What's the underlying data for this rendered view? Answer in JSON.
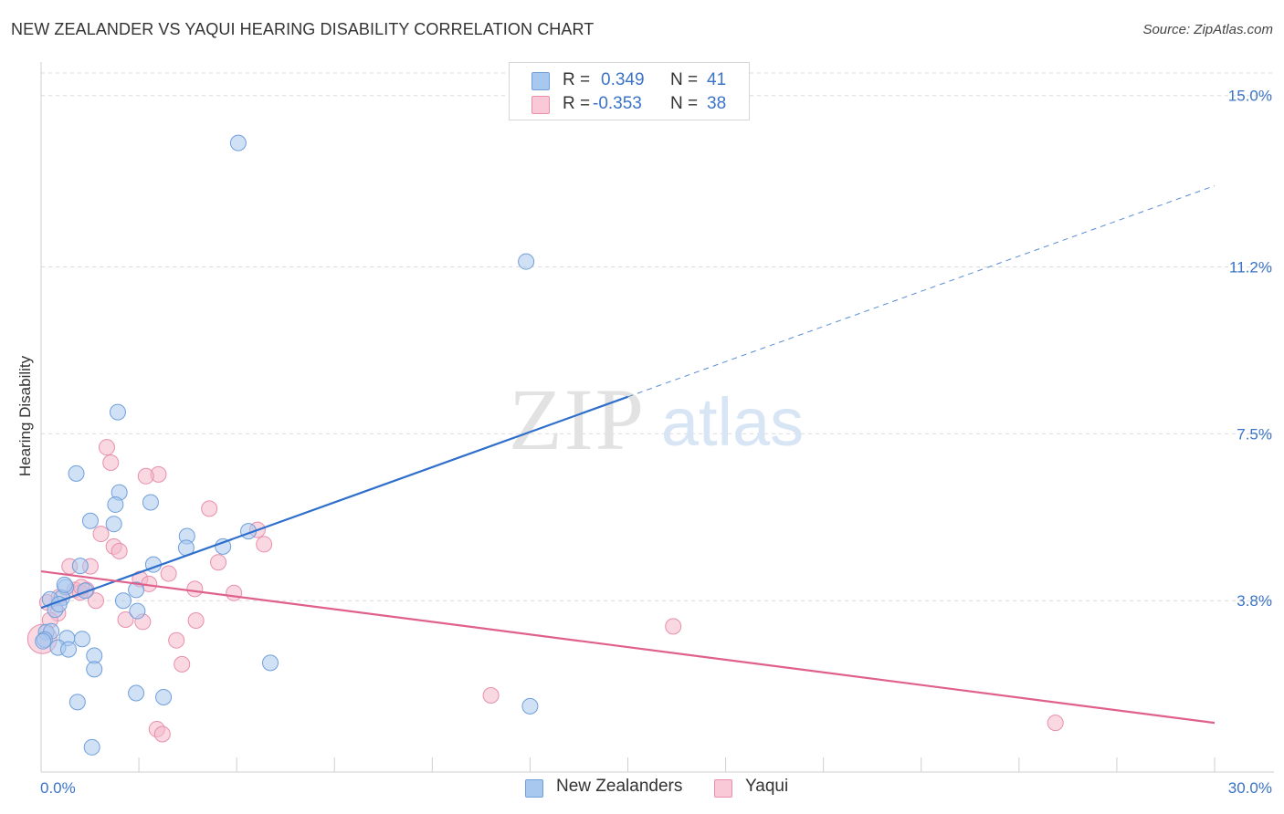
{
  "title": "NEW ZEALANDER VS YAQUI HEARING DISABILITY CORRELATION CHART",
  "source": "Source: ZipAtlas.com",
  "watermark": {
    "zip": "ZIP",
    "atlas": "atlas"
  },
  "legend_top": {
    "rows": [
      {
        "r_label": "R =",
        "r_value": "0.349",
        "n_label": "N =",
        "n_value": "41"
      },
      {
        "r_label": "R =",
        "r_value": "-0.353",
        "n_label": "N =",
        "n_value": "38"
      }
    ]
  },
  "legend_bottom": {
    "items": [
      "New Zealanders",
      "Yaqui"
    ]
  },
  "colors": {
    "blue_fill": "#a9c8ef",
    "blue_stroke": "#6f9fdb",
    "blue_line": "#2f6fcc",
    "pink_fill": "#f4b8cb",
    "pink_stroke": "#e88fac",
    "pink_line": "#e0608c",
    "tick_label": "#3a73c8",
    "grid": "#dcdcdc"
  },
  "chart_data": {
    "type": "scatter",
    "title": "NEW ZEALANDER VS YAQUI HEARING DISABILITY CORRELATION CHART",
    "xlabel": "",
    "ylabel": "Hearing Disability",
    "xlim": [
      0,
      30
    ],
    "ylim": [
      0,
      15.5
    ],
    "x_tick_labels": [
      {
        "value": 0,
        "label": "0.0%"
      },
      {
        "value": 30,
        "label": "30.0%"
      }
    ],
    "y_tick_labels": [
      {
        "value": 3.8,
        "label": "3.8%"
      },
      {
        "value": 7.5,
        "label": "7.5%"
      },
      {
        "value": 11.2,
        "label": "11.2%"
      },
      {
        "value": 15.0,
        "label": "15.0%"
      }
    ],
    "series": [
      {
        "name": "New Zealanders",
        "R": 0.349,
        "N": 41,
        "trend": {
          "solid_x": [
            0,
            15.0
          ],
          "dashed_x": [
            15.0,
            30.0
          ],
          "intercept": 3.64,
          "slope": 0.312
        },
        "points": [
          [
            5.04,
            13.95
          ],
          [
            12.4,
            11.32
          ],
          [
            1.96,
            7.98
          ],
          [
            0.9,
            6.62
          ],
          [
            2.0,
            6.2
          ],
          [
            2.8,
            5.98
          ],
          [
            1.9,
            5.93
          ],
          [
            1.26,
            5.57
          ],
          [
            1.86,
            5.5
          ],
          [
            5.3,
            5.34
          ],
          [
            3.73,
            5.23
          ],
          [
            4.65,
            5.0
          ],
          [
            3.71,
            4.97
          ],
          [
            2.87,
            4.6
          ],
          [
            1.0,
            4.57
          ],
          [
            0.63,
            4.1
          ],
          [
            1.13,
            4.02
          ],
          [
            0.53,
            3.86
          ],
          [
            0.23,
            3.83
          ],
          [
            0.36,
            3.6
          ],
          [
            0.46,
            3.72
          ],
          [
            2.1,
            3.8
          ],
          [
            2.43,
            4.04
          ],
          [
            2.46,
            3.57
          ],
          [
            0.13,
            3.1
          ],
          [
            0.26,
            3.12
          ],
          [
            1.05,
            2.95
          ],
          [
            0.66,
            2.97
          ],
          [
            0.09,
            2.94
          ],
          [
            0.43,
            2.76
          ],
          [
            0.7,
            2.72
          ],
          [
            1.36,
            2.58
          ],
          [
            1.36,
            2.28
          ],
          [
            5.86,
            2.42
          ],
          [
            2.43,
            1.75
          ],
          [
            3.13,
            1.66
          ],
          [
            0.93,
            1.55
          ],
          [
            12.5,
            1.46
          ],
          [
            1.3,
            0.55
          ],
          [
            0.05,
            2.9
          ],
          [
            0.6,
            4.15
          ]
        ]
      },
      {
        "name": "Yaqui",
        "R": -0.353,
        "N": 38,
        "trend": {
          "x": [
            0,
            30.0
          ],
          "intercept": 4.45,
          "slope": -0.112
        },
        "points": [
          [
            1.68,
            7.2
          ],
          [
            1.78,
            6.86
          ],
          [
            3.0,
            6.6
          ],
          [
            2.68,
            6.56
          ],
          [
            4.3,
            5.84
          ],
          [
            5.53,
            5.37
          ],
          [
            1.53,
            5.28
          ],
          [
            1.86,
            5.0
          ],
          [
            5.7,
            5.05
          ],
          [
            2.0,
            4.9
          ],
          [
            4.53,
            4.65
          ],
          [
            0.73,
            4.56
          ],
          [
            1.26,
            4.56
          ],
          [
            3.26,
            4.4
          ],
          [
            2.53,
            4.28
          ],
          [
            2.76,
            4.17
          ],
          [
            0.86,
            4.04
          ],
          [
            1.16,
            4.04
          ],
          [
            3.93,
            4.06
          ],
          [
            1.0,
            3.98
          ],
          [
            1.03,
            4.1
          ],
          [
            4.93,
            3.97
          ],
          [
            0.16,
            3.76
          ],
          [
            0.46,
            3.88
          ],
          [
            1.4,
            3.8
          ],
          [
            0.43,
            3.52
          ],
          [
            0.23,
            3.37
          ],
          [
            2.16,
            3.38
          ],
          [
            2.6,
            3.33
          ],
          [
            3.96,
            3.36
          ],
          [
            3.46,
            2.92
          ],
          [
            16.16,
            3.23
          ],
          [
            3.6,
            2.39
          ],
          [
            11.5,
            1.7
          ],
          [
            2.96,
            0.95
          ],
          [
            3.1,
            0.84
          ],
          [
            25.93,
            1.09
          ],
          [
            0.03,
            2.95
          ]
        ]
      }
    ]
  }
}
